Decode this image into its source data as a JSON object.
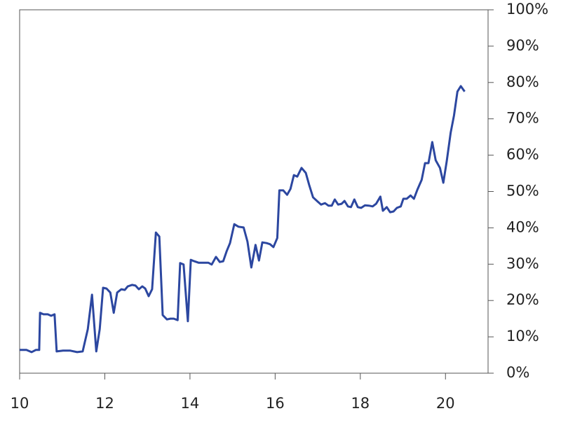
{
  "chart_data": {
    "type": "line",
    "x": [
      10.0,
      10.16,
      10.28,
      10.38,
      10.46,
      10.48,
      10.56,
      10.66,
      10.74,
      10.82,
      10.87,
      11.02,
      11.19,
      11.35,
      11.48,
      11.6,
      11.7,
      11.8,
      11.88,
      11.96,
      12.04,
      12.13,
      12.21,
      12.29,
      12.39,
      12.47,
      12.54,
      12.64,
      12.72,
      12.8,
      12.88,
      12.95,
      13.03,
      13.11,
      13.2,
      13.28,
      13.36,
      13.46,
      13.54,
      13.62,
      13.71,
      13.77,
      13.85,
      13.95,
      14.02,
      14.1,
      14.2,
      14.32,
      14.43,
      14.51,
      14.61,
      14.7,
      14.78,
      14.86,
      14.94,
      15.04,
      15.14,
      15.26,
      15.35,
      15.44,
      15.54,
      15.62,
      15.7,
      15.8,
      15.88,
      15.96,
      16.05,
      16.1,
      16.19,
      16.28,
      16.36,
      16.44,
      16.52,
      16.62,
      16.72,
      16.8,
      16.89,
      17.0,
      17.08,
      17.17,
      17.25,
      17.33,
      17.4,
      17.48,
      17.56,
      17.63,
      17.71,
      17.78,
      17.86,
      17.94,
      18.02,
      18.11,
      18.2,
      18.29,
      18.37,
      18.47,
      18.53,
      18.62,
      18.7,
      18.78,
      18.86,
      18.95,
      19.01,
      19.09,
      19.18,
      19.26,
      19.34,
      19.44,
      19.52,
      19.6,
      19.69,
      19.77,
      19.87,
      19.95,
      20.03,
      20.12,
      20.2,
      20.28,
      20.36,
      20.45
    ],
    "series": [
      {
        "color": "#2c47a0",
        "values": [
          6.4,
          6.4,
          5.8,
          6.4,
          6.4,
          16.6,
          16.2,
          16.2,
          15.8,
          16.2,
          6.0,
          6.2,
          6.2,
          5.8,
          6.0,
          12.1,
          21.6,
          6.0,
          12.1,
          23.5,
          23.3,
          22.2,
          16.6,
          22.2,
          23.1,
          22.9,
          23.9,
          24.3,
          24.1,
          23.1,
          23.9,
          23.3,
          21.2,
          23.1,
          38.7,
          37.6,
          16.0,
          14.8,
          15.0,
          15.0,
          14.6,
          30.3,
          29.9,
          14.3,
          31.2,
          30.8,
          30.4,
          30.4,
          30.4,
          29.9,
          32.0,
          30.6,
          30.8,
          33.5,
          35.8,
          41.0,
          40.3,
          40.1,
          36.2,
          29.1,
          35.3,
          31.0,
          36.0,
          35.8,
          35.5,
          34.7,
          37.2,
          50.3,
          50.3,
          49.1,
          50.7,
          54.5,
          54.1,
          56.5,
          55.1,
          51.8,
          48.4,
          47.2,
          46.4,
          46.8,
          46.1,
          46.1,
          47.8,
          46.4,
          46.6,
          47.4,
          45.9,
          45.7,
          47.8,
          45.7,
          45.5,
          46.2,
          46.1,
          45.9,
          46.6,
          48.6,
          44.7,
          45.7,
          44.3,
          44.5,
          45.5,
          45.9,
          48.0,
          48.0,
          48.9,
          48.0,
          50.5,
          53.2,
          57.8,
          57.8,
          63.6,
          58.6,
          56.5,
          52.4,
          58.4,
          66.1,
          70.9,
          77.5,
          79.0,
          77.5
        ]
      }
    ],
    "xlim": [
      10,
      21
    ],
    "xticks": [
      10,
      12,
      14,
      16,
      18,
      20
    ],
    "ylim": [
      0,
      100
    ],
    "yticks": [
      {
        "value": 0,
        "label": "0%"
      },
      {
        "value": 10,
        "label": "10%"
      },
      {
        "value": 20,
        "label": "20%"
      },
      {
        "value": 30,
        "label": "30%"
      },
      {
        "value": 40,
        "label": "40%"
      },
      {
        "value": 50,
        "label": "50%"
      },
      {
        "value": 60,
        "label": "60%"
      },
      {
        "value": 70,
        "label": "70%"
      },
      {
        "value": 80,
        "label": "80%"
      },
      {
        "value": 90,
        "label": "90%"
      },
      {
        "value": 100,
        "label": "100%"
      }
    ],
    "grid": false
  }
}
